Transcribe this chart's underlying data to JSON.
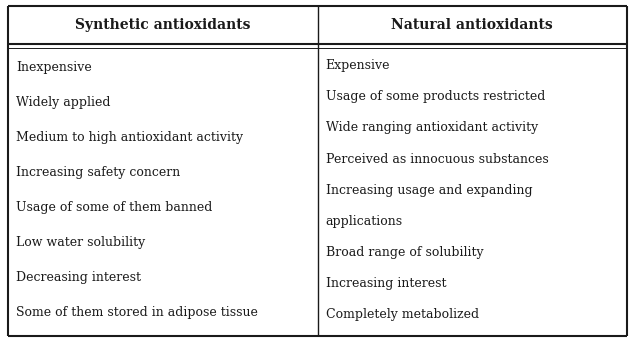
{
  "col1_header": "Synthetic antioxidants",
  "col2_header": "Natural antioxidants",
  "col1_items": [
    "Inexpensive",
    "Widely applied",
    "Medium to high antioxidant activity",
    "Increasing safety concern",
    "Usage of some of them banned",
    "Low water solubility",
    "Decreasing interest",
    "Some of them stored in adipose tissue"
  ],
  "col2_items": [
    "Expensive",
    "Usage of some products restricted",
    "Wide ranging antioxidant activity",
    "Perceived as innocuous substances",
    "Increasing usage and expanding",
    "applications",
    "Broad range of solubility",
    "Increasing interest",
    "Completely metabolized"
  ],
  "bg_color": "#ffffff",
  "header_bg": "#ffffff",
  "border_color": "#1a1a1a",
  "text_color": "#1a1a1a",
  "header_fontsize": 10,
  "body_fontsize": 9
}
